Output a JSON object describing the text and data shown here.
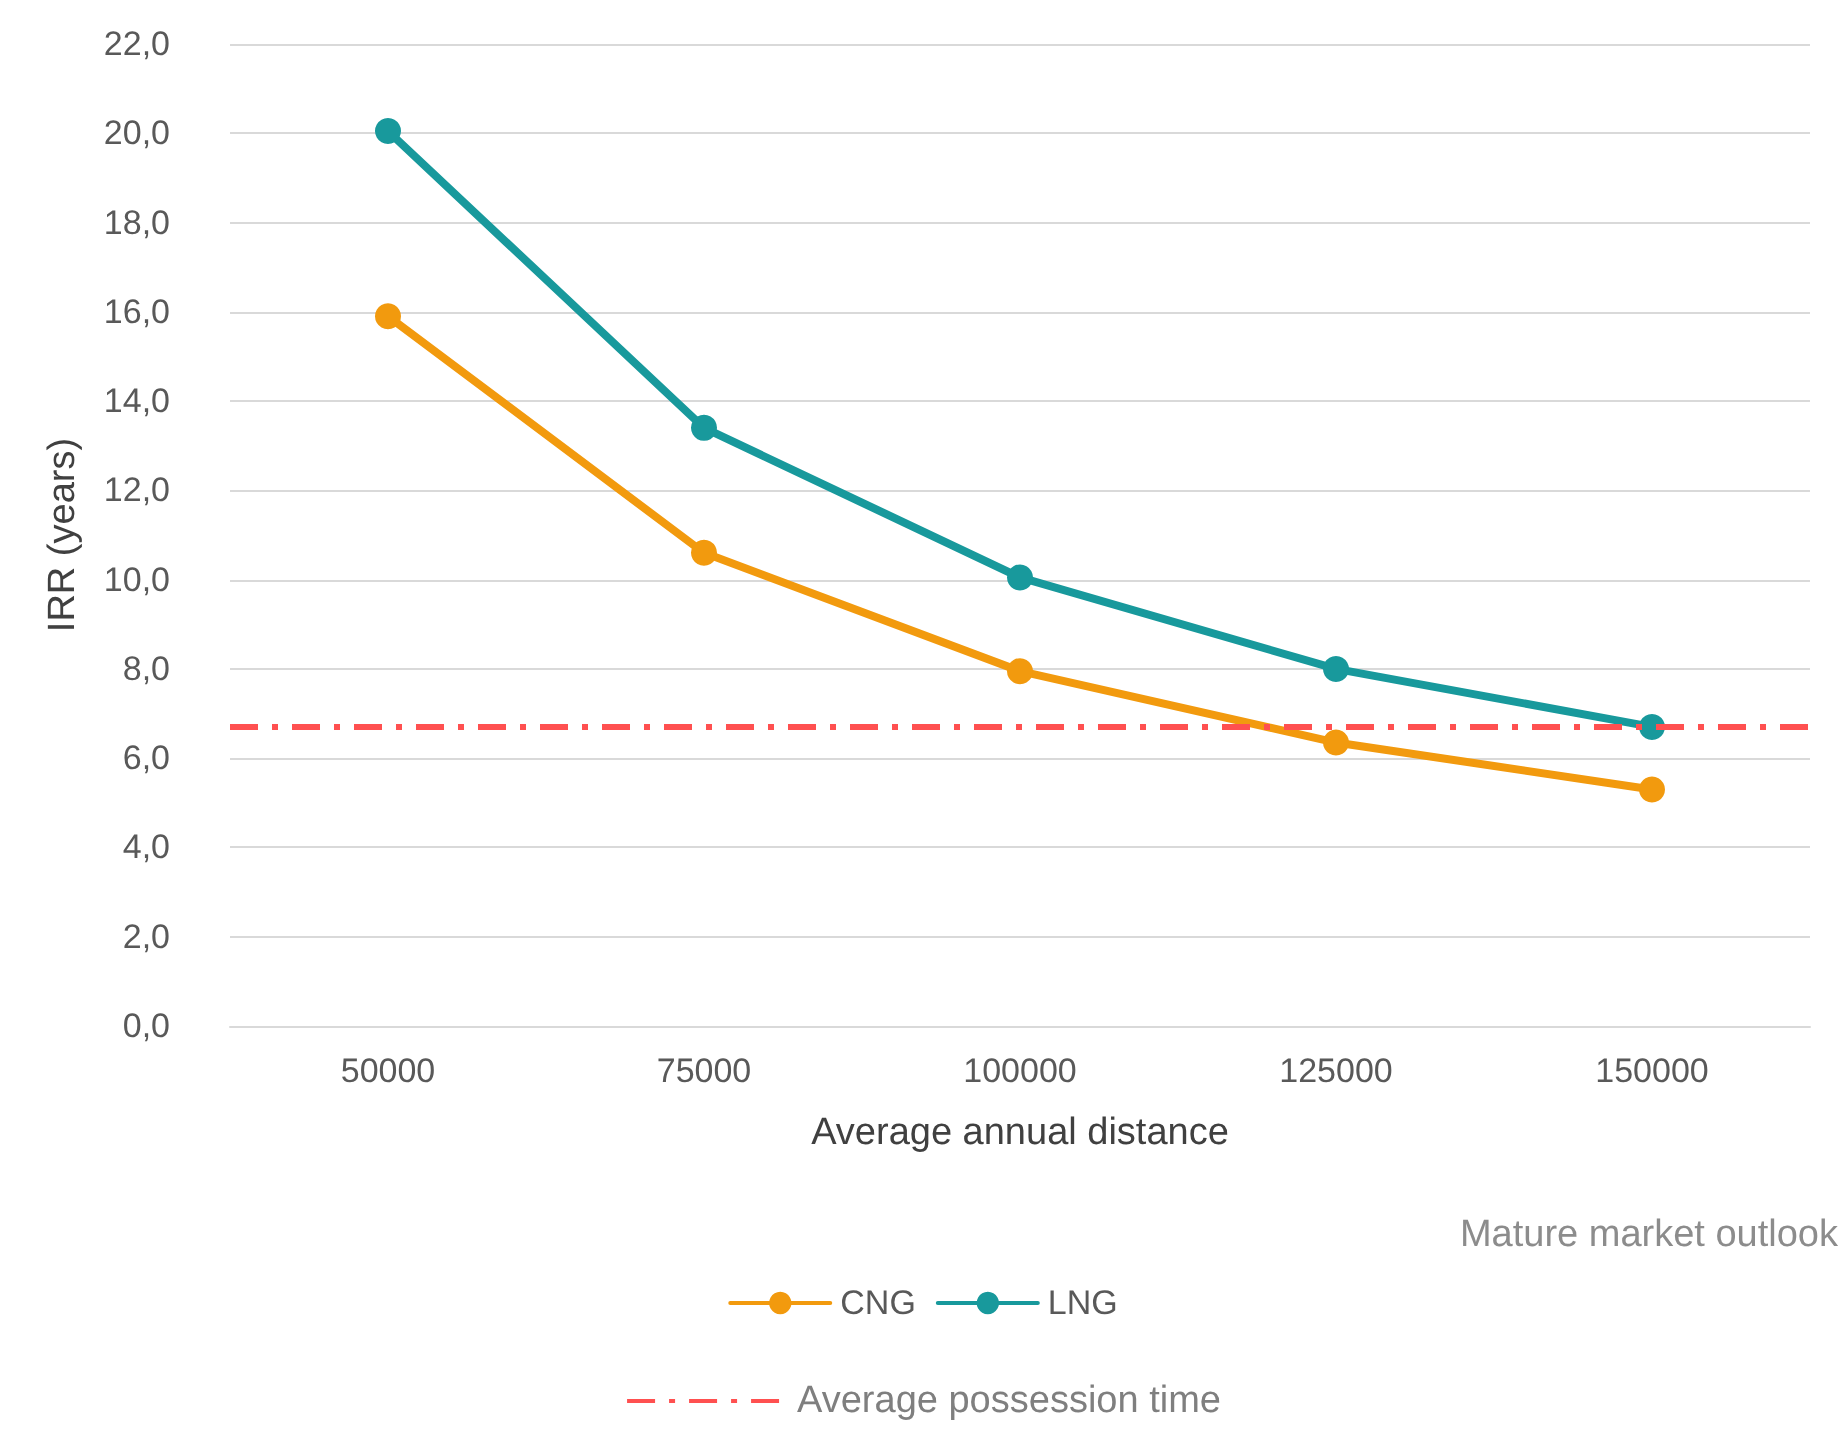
{
  "chart_data": {
    "type": "line",
    "xlabel": "Average annual distance",
    "ylabel": "IRR (years)",
    "categories": [
      "50000",
      "75000",
      "100000",
      "125000",
      "150000"
    ],
    "series": [
      {
        "name": "CNG",
        "color": "#f29a0e",
        "values": [
          15.9,
          10.6,
          7.95,
          6.35,
          5.3
        ]
      },
      {
        "name": "LNG",
        "color": "#18999c",
        "values": [
          20.05,
          13.4,
          10.05,
          8.0,
          6.7
        ]
      }
    ],
    "ylim": [
      0,
      22
    ],
    "yticks": [
      {
        "value": 0,
        "label": "0,0"
      },
      {
        "value": 2,
        "label": "2,0"
      },
      {
        "value": 4,
        "label": "4,0"
      },
      {
        "value": 6,
        "label": "6,0"
      },
      {
        "value": 8,
        "label": "8,0"
      },
      {
        "value": 10,
        "label": "10,0"
      },
      {
        "value": 12,
        "label": "12,0"
      },
      {
        "value": 14,
        "label": "14,0"
      },
      {
        "value": 16,
        "label": "16,0"
      },
      {
        "value": 18,
        "label": "18,0"
      },
      {
        "value": 20,
        "label": "20,0"
      },
      {
        "value": 22,
        "label": "22,0"
      }
    ],
    "ref_lines": [
      {
        "axis": "y",
        "value": 6.7,
        "label": "Average possession time",
        "color": "#ff5050",
        "line_style": "dashdot"
      }
    ],
    "annotations": [
      "Mature market outlook"
    ],
    "grid": "y",
    "legend": "bottom",
    "marker": "circle",
    "line_style": "solid"
  }
}
